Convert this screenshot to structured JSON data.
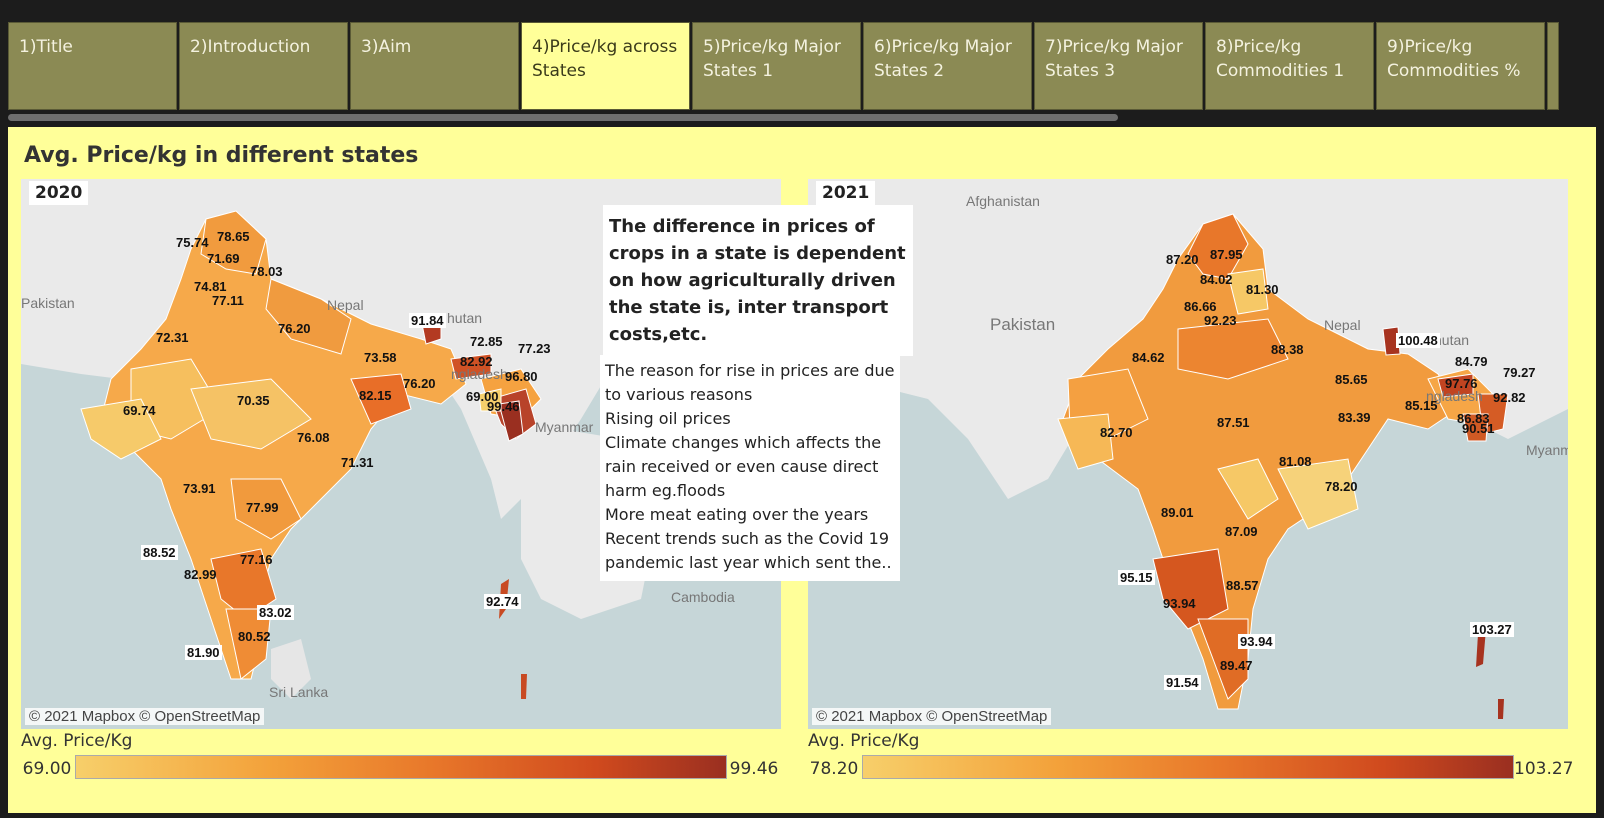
{
  "tabs": [
    {
      "label": "1)Title",
      "active": false
    },
    {
      "label": "2)Introduction",
      "active": false
    },
    {
      "label": "3)Aim",
      "active": false
    },
    {
      "label": "4)Price/kg across States",
      "active": true
    },
    {
      "label": "5)Price/kg Major States 1",
      "active": false
    },
    {
      "label": "6)Price/kg Major States 2",
      "active": false
    },
    {
      "label": "7)Price/kg Major States 3",
      "active": false
    },
    {
      "label": "8)Price/kg Commodities 1",
      "active": false
    },
    {
      "label": "9)Price/kg Commodities %",
      "active": false
    }
  ],
  "dashboard": {
    "title": "Avg. Price/kg in different states",
    "note_1": "The difference in prices of crops in a state is dependent on how agriculturally driven the state is, inter transport costs,etc.",
    "note_2_lines": [
      "The reason for rise in prices are due to various reasons",
      "Rising oil prices",
      "Climate changes which affects the rain received or even cause direct harm eg.floods",
      "More meat eating over the years",
      "Recent trends such as the Covid 19 pandemic last year which sent the.."
    ]
  },
  "maps": [
    {
      "year": "2020",
      "credit": "© 2021 Mapbox © OpenStreetMap",
      "place_labels": [
        "Pakistan",
        "Nepal",
        "hutan",
        "ngladesh",
        "Myanmar",
        "Cambodia",
        "Sri Lanka"
      ],
      "legend": {
        "title": "Avg. Price/Kg",
        "min": "69.00",
        "max": "99.46"
      },
      "values": [
        "75.74",
        "78.65",
        "71.69",
        "78.03",
        "74.81",
        "77.11",
        "72.31",
        "76.20",
        "91.84",
        "72.85",
        "82.92",
        "77.23",
        "73.58",
        "76.20",
        "82.15",
        "96.80",
        "69.00",
        "99.46",
        "69.74",
        "70.35",
        "76.08",
        "71.31",
        "73.91",
        "77.99",
        "88.52",
        "82.99",
        "77.16",
        "83.02",
        "80.52",
        "81.90",
        "92.74"
      ]
    },
    {
      "year": "2021",
      "credit": "© 2021 Mapbox © OpenStreetMap",
      "place_labels": [
        "Afghanistan",
        "Pakistan",
        "Nepal",
        "hutan",
        "ngladesh",
        "Myanm"
      ],
      "legend": {
        "title": "Avg. Price/Kg",
        "min": "78.20",
        "max": "103.27"
      },
      "values": [
        "87.20",
        "87.95",
        "84.02",
        "81.30",
        "86.66",
        "92.23",
        "84.62",
        "88.38",
        "100.48",
        "84.79",
        "79.27",
        "85.65",
        "97.76",
        "92.82",
        "85.15",
        "83.39",
        "86.83",
        "90.51",
        "82.70",
        "87.51",
        "81.08",
        "78.20",
        "89.01",
        "87.09",
        "95.15",
        "88.57",
        "93.94",
        "93.94",
        "89.47",
        "91.54",
        "103.27"
      ]
    }
  ],
  "colors": {
    "low": "#f7cf6a",
    "mid": "#e8772a",
    "high": "#9a2f20",
    "background": "#ffff99",
    "tab": "#8b8a54"
  }
}
